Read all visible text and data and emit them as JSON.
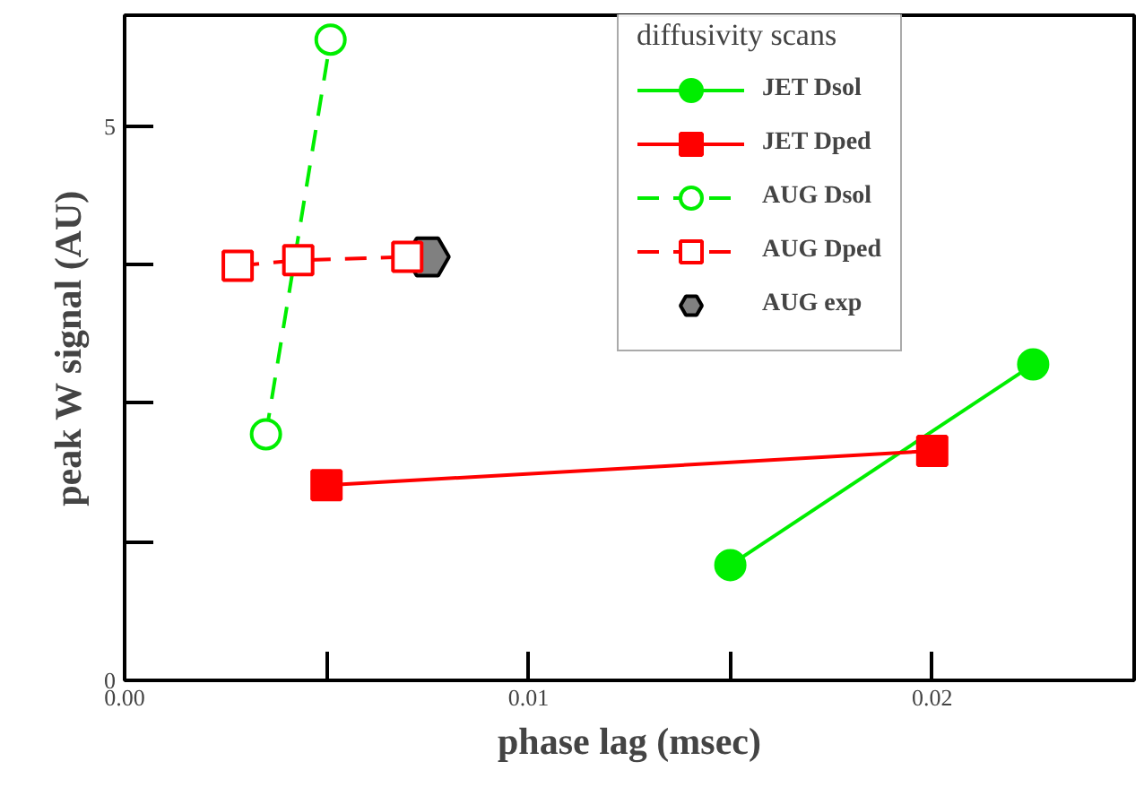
{
  "chart_data": {
    "type": "line",
    "xlabel": "phase lag (msec)",
    "ylabel": "peak W signal (AU)",
    "legend_title": "diffusivity scans",
    "xlim": [
      0,
      0.025
    ],
    "ylim": [
      0,
      6
    ],
    "xticks": [
      {
        "value": 0,
        "label": "0.00"
      },
      {
        "value": 0.005,
        "label": null
      },
      {
        "value": 0.01,
        "label": "0.01"
      },
      {
        "value": 0.015,
        "label": null
      },
      {
        "value": 0.02,
        "label": "0.02"
      },
      {
        "value": 0.025,
        "label": null
      }
    ],
    "yticks": [
      0,
      {
        "value": 1.25,
        "label": null
      },
      {
        "value": 2.5,
        "label": null
      },
      {
        "value": 3.75,
        "label": null
      },
      5
    ],
    "grid": false,
    "legend": "top right",
    "series": [
      {
        "name": "JET Dsol",
        "color": "#00ee00",
        "marker": "circle",
        "line_style": "solid",
        "x": [
          0.015,
          0.0225
        ],
        "values": [
          1.04,
          2.85
        ]
      },
      {
        "name": "JET Dped",
        "color": "#ff0000",
        "marker": "square",
        "line_style": "solid",
        "x": [
          0.005,
          0.02
        ],
        "values": [
          1.76,
          2.07
        ]
      },
      {
        "name": "AUG Dsol",
        "color": "#00ee00",
        "marker": "circle",
        "line_style": "dashed",
        "x": [
          0.0035,
          0.0051
        ],
        "values": [
          2.22,
          5.78
        ]
      },
      {
        "name": "AUG Dped",
        "color": "#ff0000",
        "marker": "square",
        "line_style": "dashed",
        "x": [
          0.0028,
          0.0043,
          0.007
        ],
        "values": [
          3.74,
          3.79,
          3.82
        ]
      },
      {
        "name": "AUG exp",
        "type": "scatter",
        "color": "#808080",
        "x": [
          0.0075
        ],
        "values": [
          3.82
        ]
      }
    ]
  }
}
